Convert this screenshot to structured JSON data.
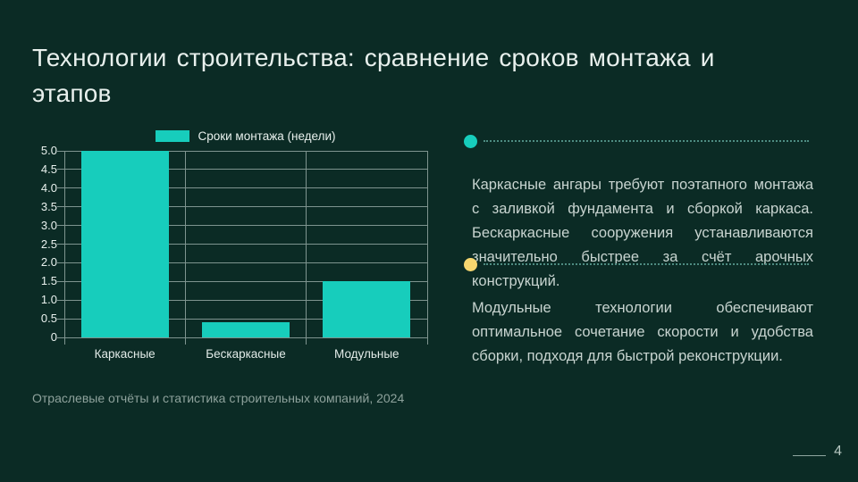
{
  "slide": {
    "title_line1": "Технологии строительства: сравнение сроков монтажа и",
    "title_line2": "этапов",
    "source": "Отраслевые отчёты и статистика строительных компаний, 2024",
    "page_number": "4"
  },
  "bullets": [
    {
      "marker_color": "#17cdbc",
      "text": "Каркасные ангары требуют поэтапного монтажа с заливкой фундамента и сборкой каркаса. Бескаркасные сооружения устанавливаются значительно быстрее за счёт арочных конструкций."
    },
    {
      "marker_color": "#f6d66f",
      "text": "Модульные технологии обеспечивают оптимальное сочетание скорости и удобства сборки, подходя для быстрой реконструкции."
    }
  ],
  "chart_data": {
    "type": "bar",
    "title": "",
    "xlabel": "",
    "ylabel": "",
    "legend": [
      "Сроки монтажа (недели)"
    ],
    "legend_position": "top",
    "categories": [
      "Каркасные",
      "Бескаркасные",
      "Модульные"
    ],
    "series": [
      {
        "name": "Сроки монтажа (недели)",
        "values": [
          5.0,
          0.4,
          1.5
        ]
      }
    ],
    "ylim": [
      0,
      5
    ],
    "ytick_step": 0.5,
    "ytick_labels": [
      "0",
      "0.5",
      "1.0",
      "1.5",
      "2.0",
      "2.5",
      "3.0",
      "3.5",
      "4.0",
      "4.5",
      "5.0"
    ],
    "grid": true,
    "bar_color": "#17cdbc"
  },
  "colors": {
    "background": "#0b2b25",
    "accent_teal": "#17cdbc",
    "bullet_yellow": "#f6d66f",
    "gridline": "#7e948f"
  }
}
